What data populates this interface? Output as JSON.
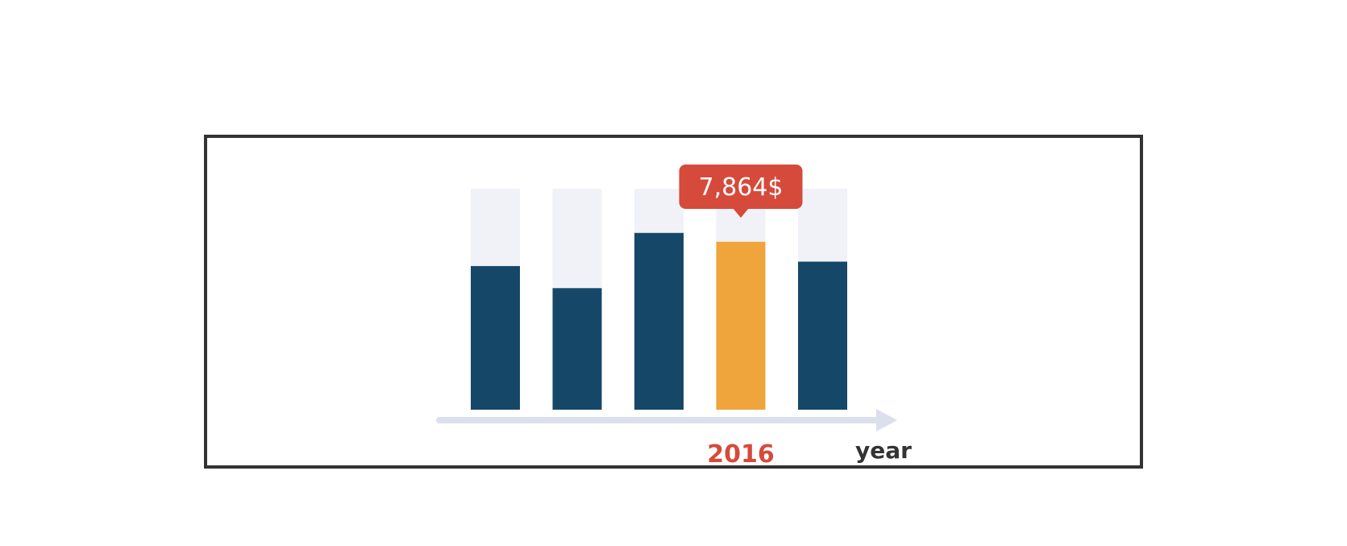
{
  "chart_data": {
    "type": "bar",
    "categories": [
      "",
      "",
      "",
      "2016",
      ""
    ],
    "values": [
      65,
      55,
      80,
      76,
      67
    ],
    "ylim": [
      0,
      100
    ],
    "xlabel": "year",
    "ylabel": "",
    "highlight_index": 3,
    "tooltip": "7,864$",
    "grid": false,
    "colors": {
      "bar": "#154868",
      "highlight": "#EFA43C",
      "track": "#F1F2F7",
      "axis": "#DCDFEC",
      "accent": "#D64A3B",
      "text": "#333333",
      "frame": "#333333"
    }
  }
}
